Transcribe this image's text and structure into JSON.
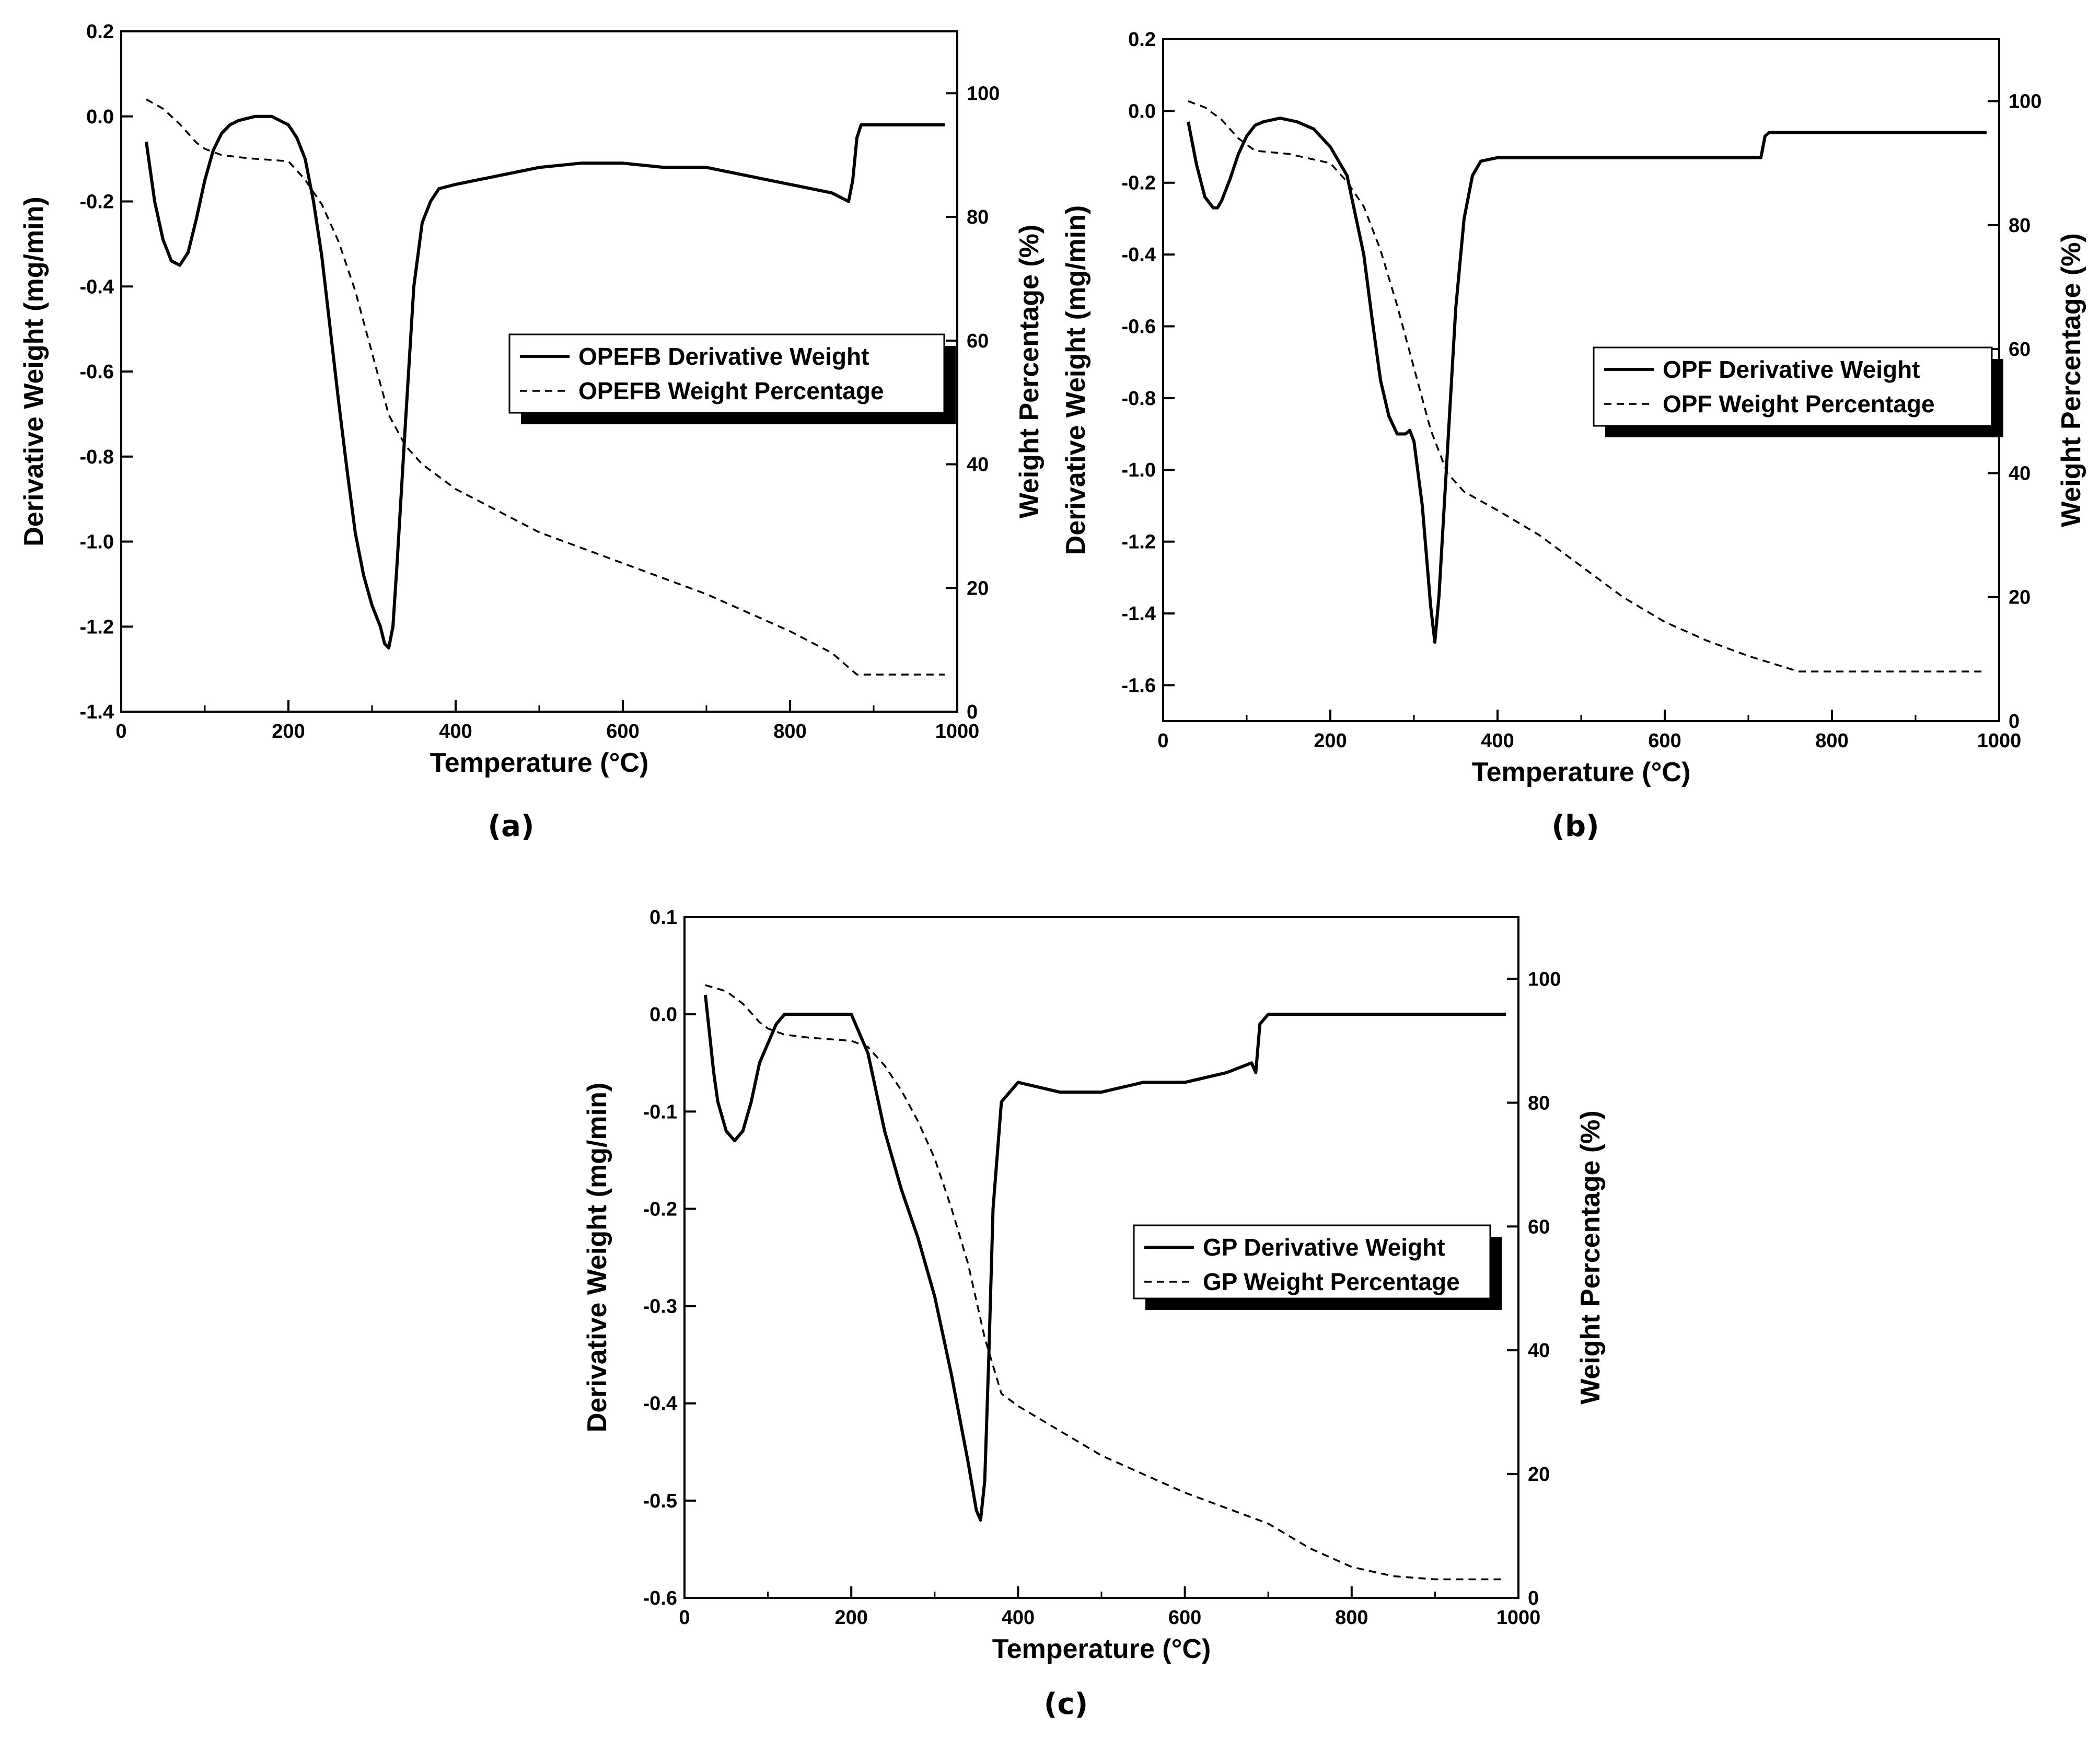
{
  "chart_data": [
    {
      "id": "a",
      "type": "line",
      "caption": "(a)",
      "xlabel": "Temperature (°C)",
      "ylabel": "Derivative Weight (mg/min)",
      "y2label": "Weight Percentage (%)",
      "xlim": [
        0,
        1000
      ],
      "ylim": [
        -1.4,
        0.2
      ],
      "y2lim": [
        0,
        110
      ],
      "xticks": [
        "0",
        "200",
        "400",
        "600",
        "800",
        "1000"
      ],
      "yticks": [
        "0.2",
        "0.0",
        "-0.2",
        "-0.4",
        "-0.6",
        "-0.8",
        "-1.0",
        "-1.2",
        "-1.4"
      ],
      "y2ticks": [
        "100",
        "80",
        "60",
        "40",
        "20",
        "0"
      ],
      "legend": [
        "OPEFB Derivative Weight",
        "OPEFB Weight Percentage"
      ],
      "series": [
        {
          "name": "OPEFB Derivative Weight",
          "style": "solid",
          "axis": "left",
          "x": [
            30,
            40,
            50,
            60,
            70,
            80,
            90,
            100,
            110,
            120,
            130,
            140,
            150,
            160,
            180,
            200,
            210,
            220,
            230,
            240,
            250,
            260,
            270,
            280,
            290,
            300,
            310,
            315,
            320,
            325,
            330,
            340,
            350,
            360,
            370,
            380,
            400,
            450,
            500,
            550,
            600,
            650,
            700,
            750,
            800,
            850,
            870,
            875,
            880,
            885,
            900,
            950,
            985
          ],
          "y": [
            -0.06,
            -0.2,
            -0.29,
            -0.34,
            -0.35,
            -0.32,
            -0.24,
            -0.15,
            -0.08,
            -0.04,
            -0.02,
            -0.01,
            -0.005,
            0.0,
            0.0,
            -0.02,
            -0.05,
            -0.1,
            -0.2,
            -0.33,
            -0.5,
            -0.67,
            -0.83,
            -0.98,
            -1.08,
            -1.15,
            -1.2,
            -1.24,
            -1.25,
            -1.2,
            -1.05,
            -0.72,
            -0.4,
            -0.25,
            -0.2,
            -0.17,
            -0.16,
            -0.14,
            -0.12,
            -0.11,
            -0.11,
            -0.12,
            -0.12,
            -0.14,
            -0.16,
            -0.18,
            -0.2,
            -0.15,
            -0.05,
            -0.02,
            -0.02,
            -0.02,
            -0.02
          ]
        },
        {
          "name": "OPEFB Weight Percentage",
          "style": "dashed",
          "axis": "right",
          "x": [
            30,
            50,
            70,
            90,
            100,
            120,
            150,
            200,
            220,
            240,
            260,
            280,
            300,
            320,
            340,
            360,
            400,
            500,
            600,
            700,
            800,
            850,
            880,
            985
          ],
          "y": [
            99,
            97.5,
            95,
            92,
            91,
            90,
            89.5,
            89,
            86,
            82,
            76,
            68,
            58,
            48,
            43,
            40,
            36,
            29,
            24,
            19,
            13,
            9.5,
            6,
            6
          ]
        }
      ]
    },
    {
      "id": "b",
      "type": "line",
      "caption": "(b)",
      "xlabel": "Temperature (°C)",
      "ylabel": "Derivative Weight (mg/min)",
      "y2label": "Weight Percentage (%)",
      "xlim": [
        0,
        1000
      ],
      "ylim": [
        -1.7,
        0.2
      ],
      "y2lim": [
        0,
        110
      ],
      "xticks": [
        "0",
        "200",
        "400",
        "600",
        "800",
        "1000"
      ],
      "yticks": [
        "0.2",
        "0.0",
        "-0.2",
        "-0.4",
        "-0.6",
        "-0.8",
        "-1.0",
        "-1.2",
        "-1.4",
        "-1.6"
      ],
      "y2ticks": [
        "100",
        "80",
        "60",
        "40",
        "20",
        "0"
      ],
      "legend": [
        "OPF Derivative Weight",
        "OPF Weight Percentage"
      ],
      "series": [
        {
          "name": "OPF Derivative Weight",
          "style": "solid",
          "axis": "left",
          "x": [
            30,
            40,
            50,
            60,
            65,
            70,
            80,
            90,
            100,
            110,
            120,
            140,
            160,
            180,
            200,
            220,
            240,
            250,
            260,
            270,
            280,
            290,
            295,
            300,
            310,
            320,
            325,
            330,
            340,
            350,
            360,
            370,
            380,
            400,
            500,
            600,
            700,
            715,
            720,
            725,
            985
          ],
          "y": [
            -0.03,
            -0.15,
            -0.24,
            -0.27,
            -0.27,
            -0.25,
            -0.19,
            -0.12,
            -0.07,
            -0.04,
            -0.03,
            -0.02,
            -0.03,
            -0.05,
            -0.1,
            -0.18,
            -0.4,
            -0.58,
            -0.75,
            -0.85,
            -0.9,
            -0.9,
            -0.89,
            -0.92,
            -1.1,
            -1.38,
            -1.48,
            -1.35,
            -0.95,
            -0.55,
            -0.3,
            -0.18,
            -0.14,
            -0.13,
            -0.13,
            -0.13,
            -0.13,
            -0.13,
            -0.07,
            -0.06,
            -0.06
          ]
        },
        {
          "name": "OPF Weight Percentage",
          "style": "dashed",
          "axis": "right",
          "x": [
            30,
            50,
            70,
            90,
            110,
            150,
            200,
            220,
            240,
            260,
            280,
            300,
            320,
            340,
            360,
            400,
            450,
            500,
            550,
            600,
            650,
            700,
            760,
            985
          ],
          "y": [
            100,
            99,
            97,
            94,
            92,
            91.5,
            90,
            87,
            83,
            76,
            67,
            57,
            47,
            40,
            37,
            34,
            30,
            25,
            20,
            16,
            13,
            10.5,
            8,
            8
          ]
        }
      ]
    },
    {
      "id": "c",
      "type": "line",
      "caption": "(c)",
      "xlabel": "Temperature (°C)",
      "ylabel": "Derivative Weight (mg/min)",
      "y2label": "Weight Percentage (%)",
      "xlim": [
        0,
        1000
      ],
      "ylim": [
        -0.6,
        0.1
      ],
      "y2lim": [
        0,
        110
      ],
      "xticks": [
        "0",
        "200",
        "400",
        "600",
        "800",
        "1000"
      ],
      "yticks": [
        "0.1",
        "0.0",
        "-0.1",
        "-0.2",
        "-0.3",
        "-0.4",
        "-0.5",
        "-0.6"
      ],
      "y2ticks": [
        "100",
        "80",
        "60",
        "40",
        "20",
        "0"
      ],
      "legend": [
        "GP Derivative Weight",
        "GP Weight Percentage"
      ],
      "series": [
        {
          "name": "GP Derivative Weight",
          "style": "solid",
          "axis": "left",
          "x": [
            25,
            30,
            35,
            40,
            50,
            60,
            70,
            80,
            90,
            100,
            110,
            120,
            150,
            200,
            210,
            220,
            230,
            240,
            250,
            260,
            280,
            300,
            320,
            340,
            350,
            355,
            360,
            365,
            370,
            380,
            400,
            450,
            500,
            550,
            600,
            650,
            680,
            685,
            690,
            700,
            750,
            800,
            850,
            900,
            985
          ],
          "y": [
            0.02,
            -0.02,
            -0.06,
            -0.09,
            -0.12,
            -0.13,
            -0.12,
            -0.09,
            -0.05,
            -0.03,
            -0.01,
            0.0,
            0.0,
            0.0,
            -0.02,
            -0.04,
            -0.08,
            -0.12,
            -0.15,
            -0.18,
            -0.23,
            -0.29,
            -0.37,
            -0.46,
            -0.51,
            -0.52,
            -0.48,
            -0.35,
            -0.2,
            -0.09,
            -0.07,
            -0.08,
            -0.08,
            -0.07,
            -0.07,
            -0.06,
            -0.05,
            -0.06,
            -0.01,
            0.0,
            0.0,
            0.0,
            0.0,
            0.0,
            0.0
          ]
        },
        {
          "name": "GP Weight Percentage",
          "style": "dashed",
          "axis": "right",
          "x": [
            25,
            50,
            70,
            90,
            100,
            120,
            150,
            200,
            220,
            240,
            260,
            280,
            300,
            320,
            340,
            360,
            380,
            400,
            450,
            500,
            550,
            600,
            650,
            700,
            750,
            800,
            850,
            900,
            985
          ],
          "y": [
            99,
            98,
            96,
            93,
            92,
            91,
            90.5,
            90,
            89,
            86,
            82,
            77,
            71,
            63,
            54,
            42,
            33,
            31,
            27,
            23,
            20,
            17,
            14.5,
            12,
            8,
            5,
            3.5,
            3,
            3
          ]
        }
      ]
    }
  ]
}
